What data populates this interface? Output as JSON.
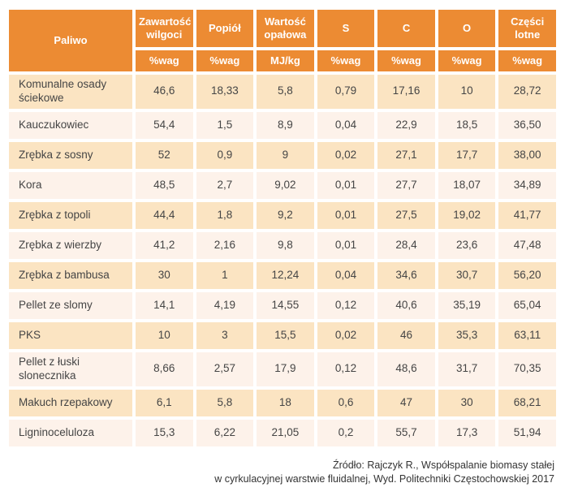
{
  "chart_data": {
    "type": "table",
    "title": "",
    "columns": [
      "Paliwo",
      "Zawartość wilgoci",
      "Popiół",
      "Wartość opałowa",
      "S",
      "C",
      "O",
      "Części lotne"
    ],
    "units": [
      "",
      "%wag",
      "%wag",
      "MJ/kg",
      "%wag",
      "%wag",
      "%wag",
      "%wag"
    ],
    "rows": [
      [
        "Komunalne osady ściekowe",
        "46,6",
        "18,33",
        "5,8",
        "0,79",
        "17,16",
        "10",
        "28,72"
      ],
      [
        "Kauczukowiec",
        "54,4",
        "1,5",
        "8,9",
        "0,04",
        "22,9",
        "18,5",
        "36,50"
      ],
      [
        "Zrębka z sosny",
        "52",
        "0,9",
        "9",
        "0,02",
        "27,1",
        "17,7",
        "38,00"
      ],
      [
        "Kora",
        "48,5",
        "2,7",
        "9,02",
        "0,01",
        "27,7",
        "18,07",
        "34,89"
      ],
      [
        "Zrębka z topoli",
        "44,4",
        "1,8",
        "9,2",
        "0,01",
        "27,5",
        "19,02",
        "41,77"
      ],
      [
        "Zrębka z wierzby",
        "41,2",
        "2,16",
        "9,8",
        "0,01",
        "28,4",
        "23,6",
        "47,48"
      ],
      [
        "Zrębka z bambusa",
        "30",
        "1",
        "12,24",
        "0,04",
        "34,6",
        "30,7",
        "56,20"
      ],
      [
        "Pellet ze slomy",
        "14,1",
        "4,19",
        "14,55",
        "0,12",
        "40,6",
        "35,19",
        "65,04"
      ],
      [
        "PKS",
        "10",
        "3",
        "15,5",
        "0,02",
        "46",
        "35,3",
        "63,11"
      ],
      [
        "Pellet z łuski slonecznika",
        "8,66",
        "2,57",
        "17,9",
        "0,12",
        "48,6",
        "31,7",
        "70,35"
      ],
      [
        "Makuch rzepakowy",
        "6,1",
        "5,8",
        "18",
        "0,6",
        "47",
        "30",
        "68,21"
      ],
      [
        "Ligninoceluloza",
        "15,3",
        "6,22",
        "21,05",
        "0,2",
        "55,7",
        "17,3",
        "51,94"
      ]
    ],
    "source_line1": "Źródło: Rajczyk R., Współspalanie biomasy stałej",
    "source_line2": "w cyrkulacyjnej warstwie fluidalnej, Wyd. Politechniki Częstochowskiej 2017"
  },
  "colors": {
    "header_orange": "#ec8b33",
    "row_peach": "#fbe4c2",
    "row_light": "#fdf2ea",
    "text_dark": "#454545",
    "header_text": "#ffffff"
  }
}
